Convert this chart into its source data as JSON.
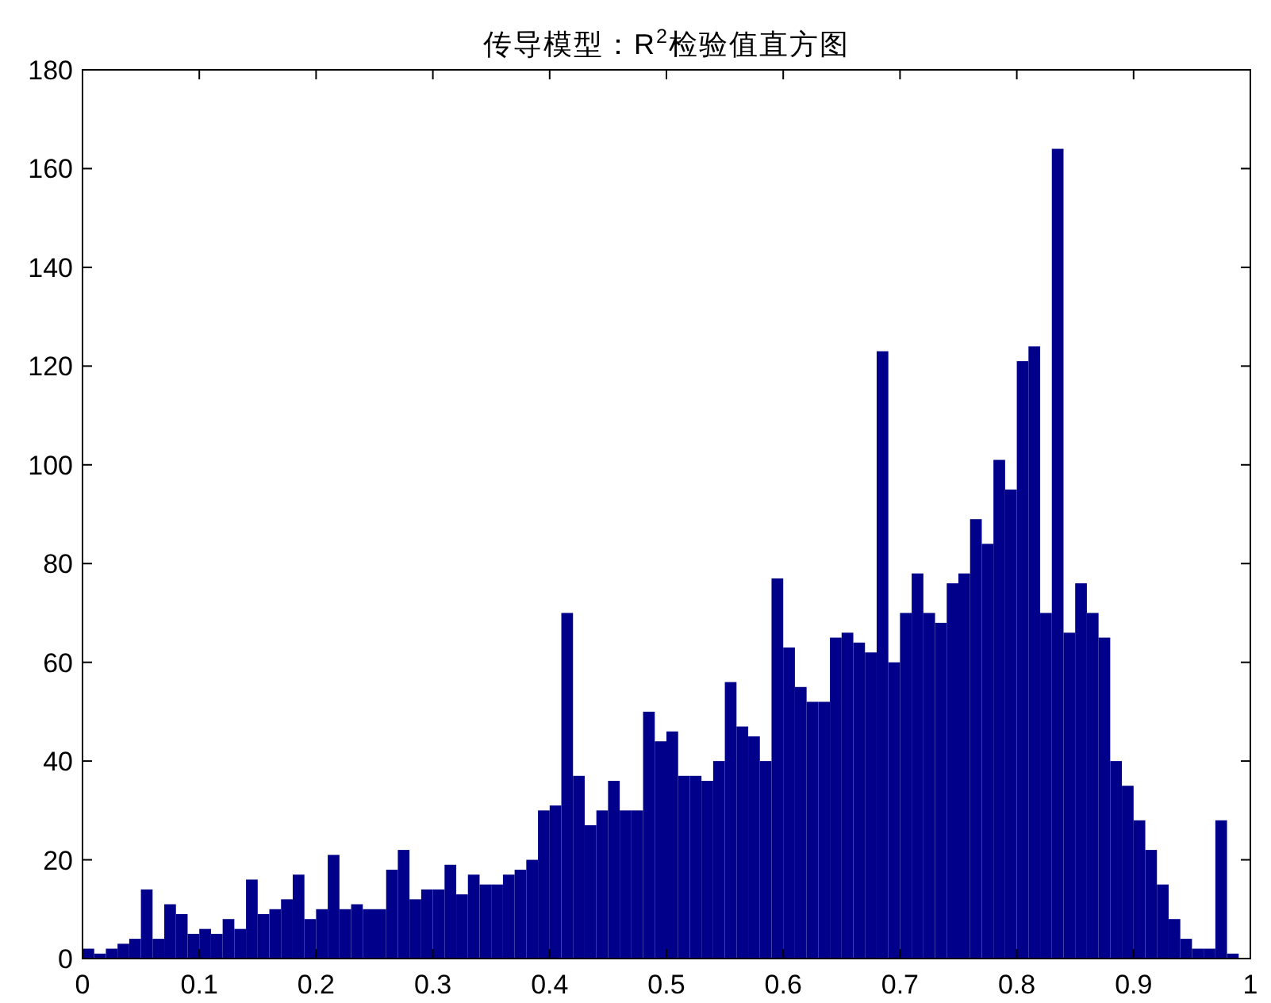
{
  "chart_data": {
    "type": "histogram",
    "title": "传导模型：R$^{2}$检验值直方图",
    "bins": [
      0,
      0.01,
      0.02,
      0.03,
      0.04,
      0.05,
      0.06,
      0.07,
      0.08,
      0.09,
      0.1,
      0.11,
      0.12,
      0.13,
      0.14,
      0.15,
      0.16,
      0.17,
      0.18,
      0.19,
      0.2,
      0.21,
      0.22,
      0.23,
      0.24,
      0.25,
      0.26,
      0.27,
      0.28,
      0.29,
      0.3,
      0.31,
      0.32,
      0.33,
      0.34,
      0.35,
      0.36,
      0.37,
      0.38,
      0.39,
      0.4,
      0.41,
      0.42,
      0.43,
      0.44,
      0.45,
      0.46,
      0.47,
      0.48,
      0.49,
      0.5,
      0.51,
      0.52,
      0.53,
      0.54,
      0.55,
      0.56,
      0.57,
      0.58,
      0.59,
      0.6,
      0.61,
      0.62,
      0.63,
      0.64,
      0.65,
      0.66,
      0.67,
      0.68,
      0.69,
      0.7,
      0.71,
      0.72,
      0.73,
      0.74,
      0.75,
      0.76,
      0.77,
      0.78,
      0.79,
      0.8,
      0.81,
      0.82,
      0.83,
      0.84,
      0.85,
      0.86,
      0.87,
      0.88,
      0.89,
      0.9,
      0.91,
      0.92,
      0.93,
      0.94,
      0.95,
      0.96,
      0.97,
      0.98,
      0.99,
      1
    ],
    "values": [
      2,
      1,
      2,
      3,
      4,
      14,
      4,
      11,
      9,
      5,
      6,
      5,
      8,
      6,
      16,
      9,
      10,
      12,
      17,
      8,
      10,
      21,
      10,
      11,
      10,
      10,
      18,
      22,
      12,
      14,
      14,
      19,
      13,
      17,
      15,
      15,
      17,
      18,
      20,
      30,
      31,
      70,
      37,
      27,
      30,
      36,
      30,
      30,
      50,
      44,
      46,
      37,
      37,
      36,
      40,
      56,
      47,
      45,
      40,
      77,
      63,
      55,
      52,
      52,
      65,
      66,
      64,
      62,
      123,
      60,
      70,
      78,
      70,
      68,
      76,
      78,
      89,
      84,
      101,
      95,
      121,
      124,
      70,
      164,
      66,
      76,
      70,
      65,
      40,
      35,
      28,
      22,
      15,
      8,
      4,
      2,
      2,
      28,
      1,
      0
    ],
    "color": "#00008b",
    "xlim": [
      0,
      1
    ],
    "ylim": [
      0,
      180
    ],
    "xticks": [
      0,
      0.1,
      0.2,
      0.3,
      0.4,
      0.5,
      0.6,
      0.7,
      0.8,
      0.9,
      1
    ],
    "yticks": [
      0,
      20,
      40,
      60,
      80,
      100,
      120,
      140,
      160,
      180
    ]
  }
}
